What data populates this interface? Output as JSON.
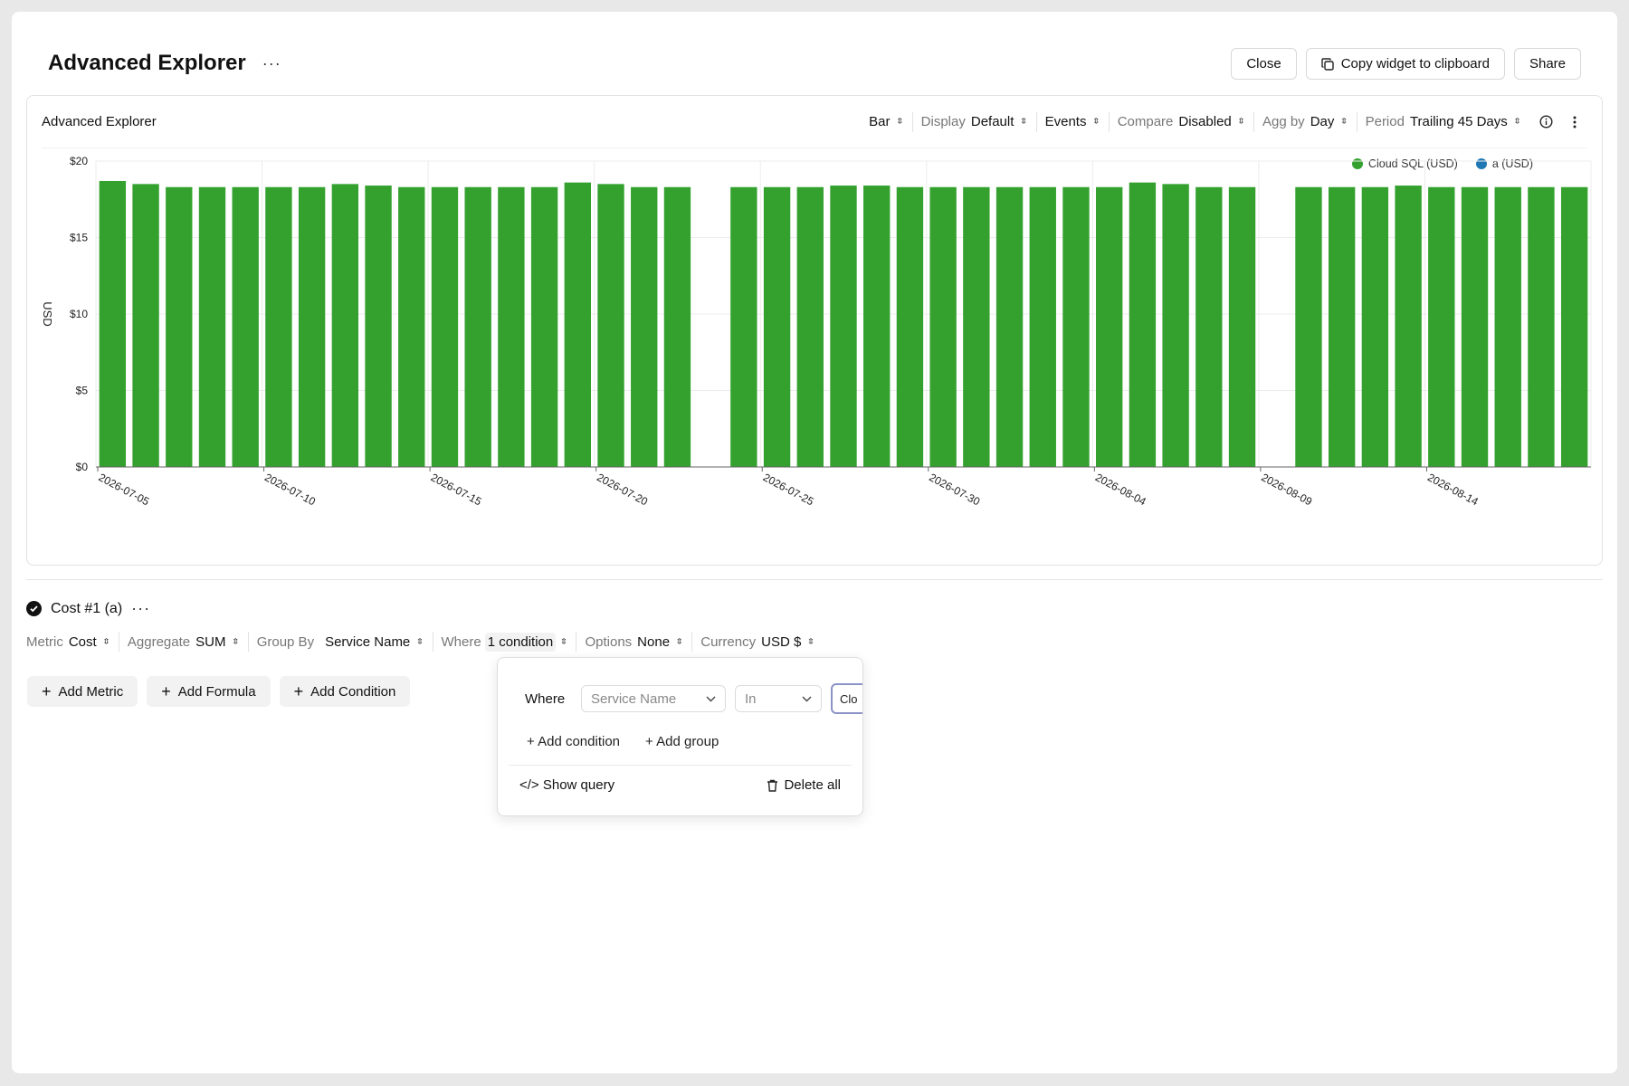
{
  "page": {
    "title": "Advanced Explorer",
    "more_label": "···"
  },
  "actions": {
    "close": "Close",
    "copy": "Copy widget to clipboard",
    "share": "Share"
  },
  "card": {
    "title": "Advanced Explorer",
    "controls": [
      {
        "label": "",
        "value": "Bar"
      },
      {
        "label": "Display",
        "value": "Default"
      },
      {
        "label": "",
        "value": "Events"
      },
      {
        "label": "Compare",
        "value": "Disabled"
      },
      {
        "label": "Agg by",
        "value": "Day"
      },
      {
        "label": "Period",
        "value": "Trailing 45 Days"
      }
    ]
  },
  "legend": [
    {
      "name": "Cloud SQL (USD)",
      "color": "#34a12f"
    },
    {
      "name": "a (USD)",
      "color": "#1f77b4"
    }
  ],
  "chart_data": {
    "type": "bar",
    "ylabel": "USD",
    "ylim": [
      0,
      20
    ],
    "yticks": [
      "$0",
      "$5",
      "$10",
      "$15",
      "$20"
    ],
    "xtick_labels": [
      "2026-07-05",
      "2026-07-10",
      "2026-07-15",
      "2026-07-20",
      "2026-07-25",
      "2026-07-30",
      "2026-08-04",
      "2026-08-09",
      "2026-08-14"
    ],
    "grid": true,
    "legend_position": "top-right",
    "bar_color": "#34a12f",
    "x": [
      "2026-07-05",
      "2026-07-06",
      "2026-07-07",
      "2026-07-08",
      "2026-07-09",
      "2026-07-10",
      "2026-07-11",
      "2026-07-12",
      "2026-07-13",
      "2026-07-14",
      "2026-07-15",
      "2026-07-16",
      "2026-07-17",
      "2026-07-18",
      "2026-07-19",
      "2026-07-20",
      "2026-07-21",
      "2026-07-22",
      "2026-07-23",
      "2026-07-24",
      "2026-07-25",
      "2026-07-26",
      "2026-07-27",
      "2026-07-28",
      "2026-07-29",
      "2026-07-30",
      "2026-07-31",
      "2026-08-01",
      "2026-08-02",
      "2026-08-03",
      "2026-08-04",
      "2026-08-05",
      "2026-08-06",
      "2026-08-07",
      "2026-08-08",
      "2026-08-09",
      "2026-08-10",
      "2026-08-11",
      "2026-08-12",
      "2026-08-13",
      "2026-08-14",
      "2026-08-15",
      "2026-08-16",
      "2026-08-17",
      "2026-08-18"
    ],
    "series": [
      {
        "name": "Cloud SQL (USD)",
        "values": [
          18.7,
          18.5,
          18.3,
          18.3,
          18.3,
          18.3,
          18.3,
          18.5,
          18.4,
          18.3,
          18.3,
          18.3,
          18.3,
          18.3,
          18.6,
          18.5,
          18.3,
          18.3,
          null,
          18.3,
          18.3,
          18.3,
          18.4,
          18.4,
          18.3,
          18.3,
          18.3,
          18.3,
          18.3,
          18.3,
          18.3,
          18.6,
          18.5,
          18.3,
          18.3,
          null,
          18.3,
          18.3,
          18.3,
          18.4,
          18.3,
          18.3,
          18.3,
          18.3,
          18.3
        ]
      }
    ]
  },
  "metric": {
    "title": "Cost #1 (a)",
    "more_label": "···",
    "controls": [
      {
        "label": "Metric",
        "value": "Cost"
      },
      {
        "label": "Aggregate",
        "value": "SUM"
      },
      {
        "label": "Group By",
        "value": "Service Name"
      },
      {
        "label": "Where",
        "value": "1 condition"
      },
      {
        "label": "Options",
        "value": "None"
      },
      {
        "label": "Currency",
        "value": "USD $"
      }
    ]
  },
  "add_buttons": {
    "metric": "Add Metric",
    "formula": "Add Formula",
    "condition": "Add Condition"
  },
  "popover": {
    "where": "Where",
    "field_placeholder": "Service Name",
    "operator_placeholder": "In",
    "value_text": "Clo",
    "add_condition": "+ Add condition",
    "add_group": "+ Add group",
    "show_query": "</> Show query",
    "delete_all": "Delete all"
  }
}
